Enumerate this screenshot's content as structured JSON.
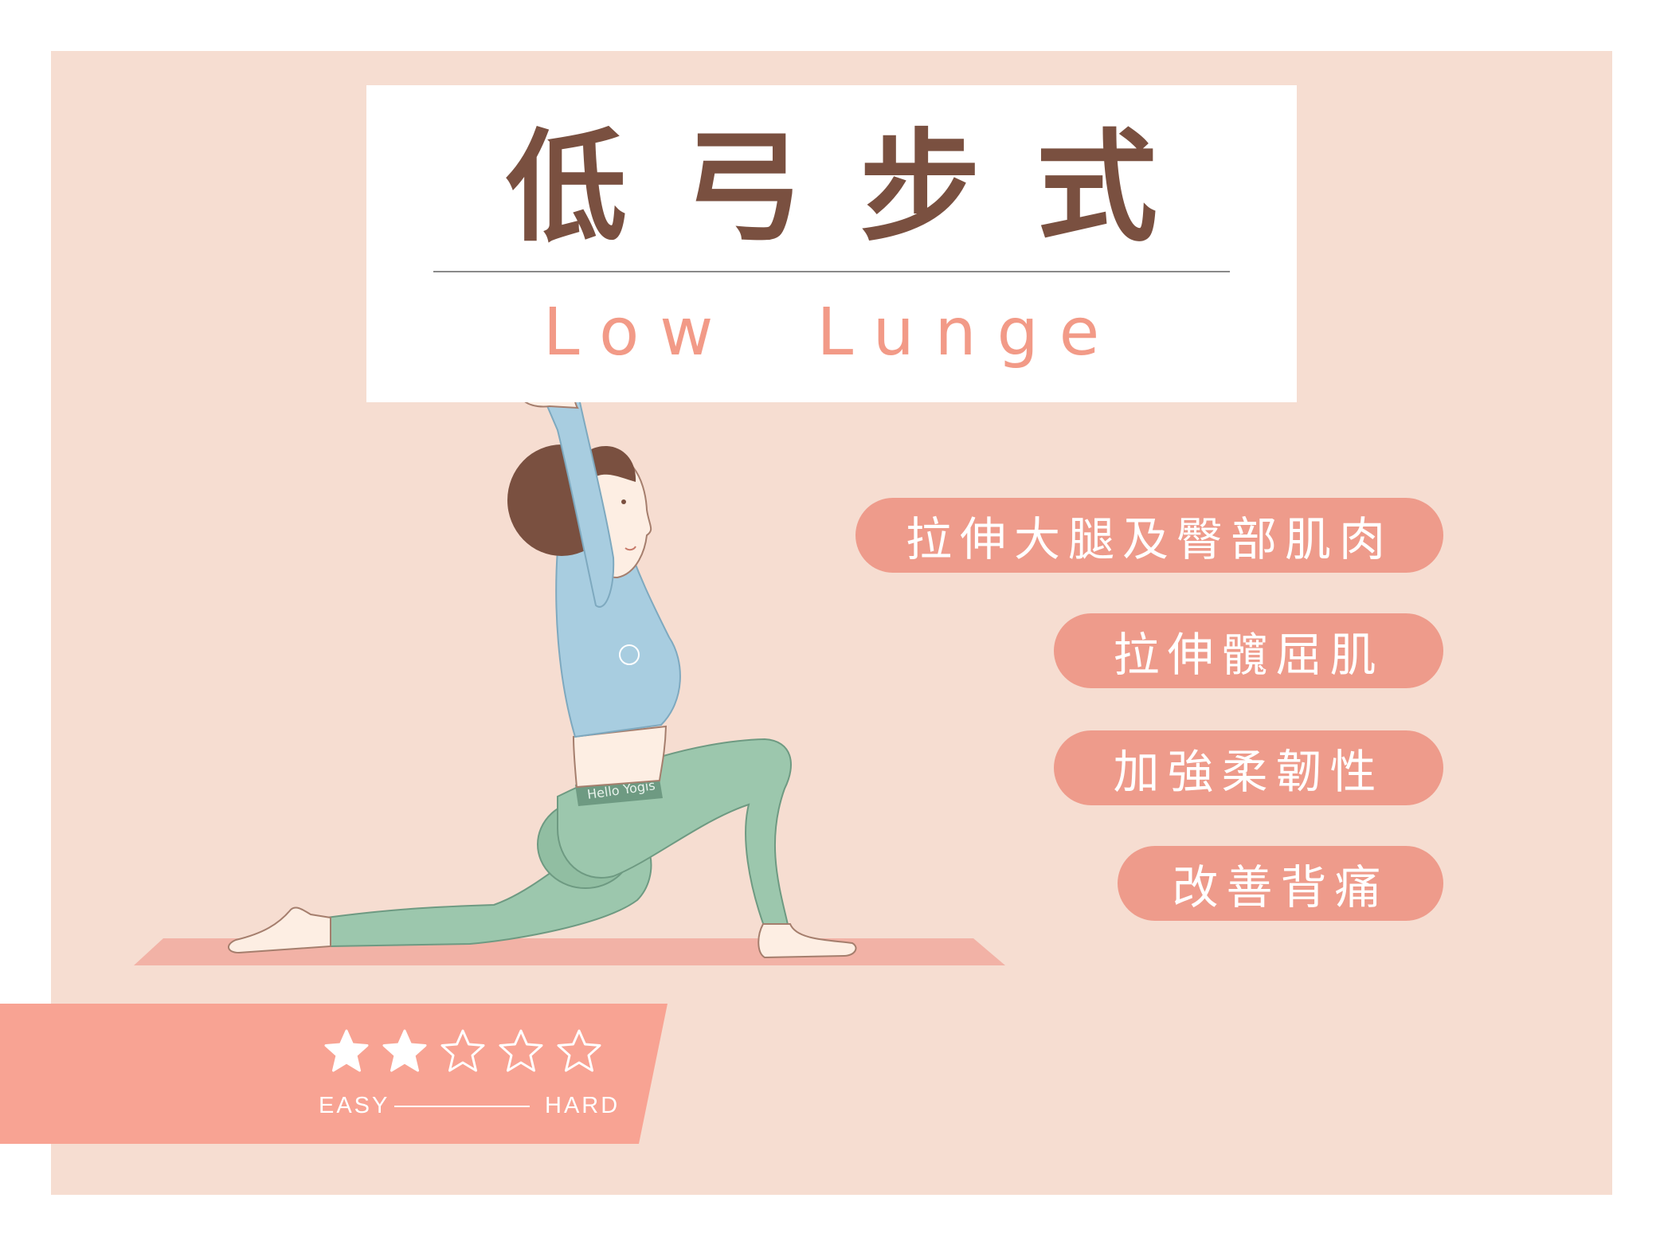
{
  "title": {
    "chinese": "低弓步式",
    "english": "Low  Lunge"
  },
  "benefits": [
    "拉伸大腿及臀部肌肉",
    "拉伸髖屈肌",
    "加強柔韌性",
    "改善背痛"
  ],
  "difficulty": {
    "rating": 2,
    "max": 5,
    "easy_label": "EASY",
    "hard_label": "HARD"
  },
  "pants_text": "Hello Yogis",
  "colors": {
    "background": "#f6ddd1",
    "title_text": "#7a5040",
    "subtitle_text": "#f29a87",
    "pill": "#ee9b8b",
    "banner": "#f8a393",
    "mat": "#f2b2a6",
    "top": "#a8cde0",
    "pants": "#9cc7ad",
    "hair": "#7a5040",
    "skin": "#fdeee3"
  }
}
